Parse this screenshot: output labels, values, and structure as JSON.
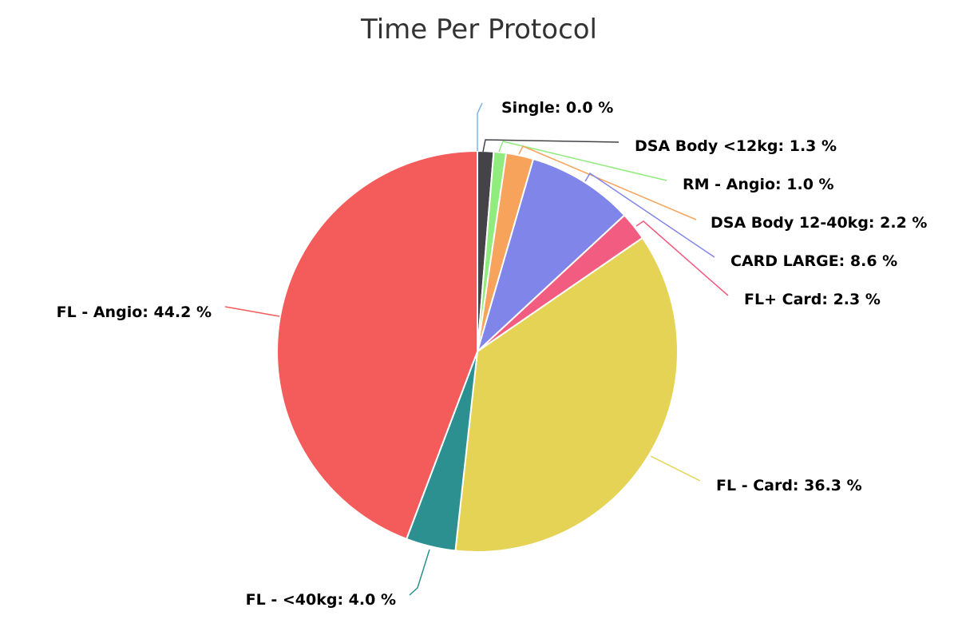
{
  "chart_data": {
    "type": "pie",
    "title": "Time Per Protocol",
    "slices": [
      {
        "name": "Single",
        "value": 0.0,
        "label": "Single: 0.0 %",
        "color": "#7cb5ec"
      },
      {
        "name": "DSA Body <12kg",
        "value": 1.3,
        "label": "DSA Body <12kg: 1.3 %",
        "color": "#434348"
      },
      {
        "name": "RM - Angio",
        "value": 1.0,
        "label": "RM - Angio: 1.0 %",
        "color": "#90ed7d"
      },
      {
        "name": "DSA Body 12-40kg",
        "value": 2.2,
        "label": "DSA Body 12-40kg: 2.2 %",
        "color": "#f7a35c"
      },
      {
        "name": "CARD LARGE",
        "value": 8.6,
        "label": "CARD LARGE: 8.6 %",
        "color": "#8085e9"
      },
      {
        "name": "FL+ Card",
        "value": 2.3,
        "label": "FL+ Card: 2.3 %",
        "color": "#f15c80"
      },
      {
        "name": "FL - Card",
        "value": 36.3,
        "label": "FL - Card: 36.3 %",
        "color": "#e4d354"
      },
      {
        "name": "FL - <40kg",
        "value": 4.0,
        "label": "FL - <40kg: 4.0 %",
        "color": "#2b908f"
      },
      {
        "name": "FL - Angio",
        "value": 44.2,
        "label": "FL - Angio: 44.2 %",
        "color": "#f45b5b"
      }
    ]
  }
}
